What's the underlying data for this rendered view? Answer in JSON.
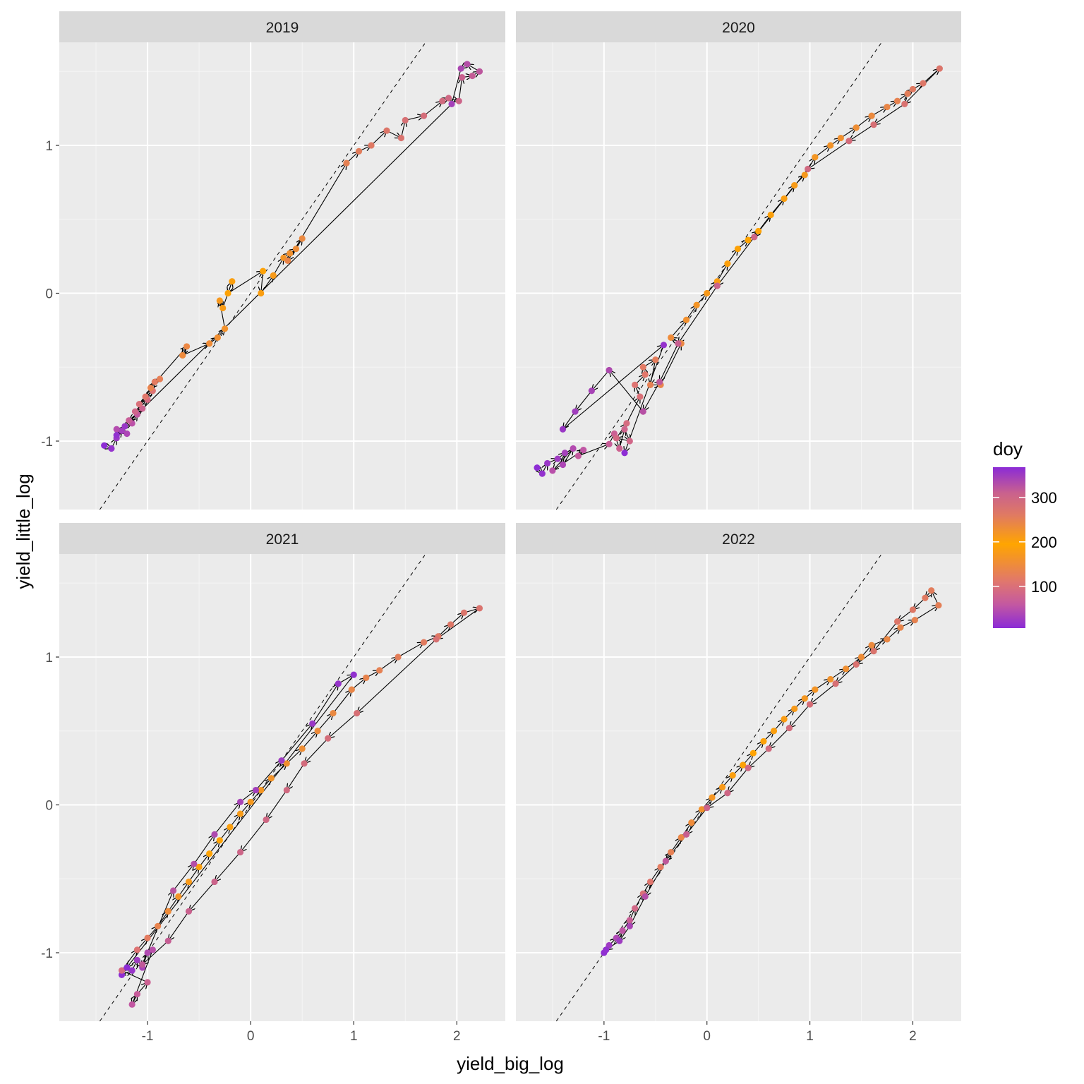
{
  "chart_data": {
    "type": "scatter",
    "xlabel": "yield_big_log",
    "ylabel": "yield_little_log",
    "xlim": [
      -1.856,
      2.47
    ],
    "ylim": [
      -1.463,
      1.697
    ],
    "x_ticks": [
      -1,
      0,
      1,
      2
    ],
    "y_ticks": [
      -1,
      0,
      1
    ],
    "reference_line": {
      "type": "y=x",
      "style": "dashed"
    },
    "legend": {
      "title": "doy",
      "placement": "right",
      "ticks": [
        100,
        200,
        300
      ],
      "range": [
        6,
        368
      ],
      "stops": [
        {
          "v": 6,
          "c": "#8B2BD6"
        },
        {
          "v": 60,
          "c": "#C459A0"
        },
        {
          "v": 110,
          "c": "#E0766E"
        },
        {
          "v": 195,
          "c": "#FFA500"
        },
        {
          "v": 260,
          "c": "#E07A62"
        },
        {
          "v": 310,
          "c": "#C9618E"
        },
        {
          "v": 368,
          "c": "#8B2BD6"
        }
      ]
    },
    "facets": [
      {
        "label": "2019",
        "points": [
          [
            -1.42,
            -1.03,
            8
          ],
          [
            -1.35,
            -1.05,
            15
          ],
          [
            -1.3,
            -0.98,
            22
          ],
          [
            -1.25,
            -0.93,
            30
          ],
          [
            -1.2,
            -0.95,
            38
          ],
          [
            -1.3,
            -0.92,
            45
          ],
          [
            -1.15,
            -0.88,
            52
          ],
          [
            -1.1,
            -0.82,
            60
          ],
          [
            -1.18,
            -0.86,
            68
          ],
          [
            -1.05,
            -0.78,
            75
          ],
          [
            -1.12,
            -0.8,
            82
          ],
          [
            -1.0,
            -0.72,
            90
          ],
          [
            -1.08,
            -0.75,
            98
          ],
          [
            -0.95,
            -0.66,
            105
          ],
          [
            -1.02,
            -0.7,
            112
          ],
          [
            -0.93,
            -0.6,
            120
          ],
          [
            -0.88,
            -0.58,
            128
          ],
          [
            -0.97,
            -0.64,
            135
          ],
          [
            -0.62,
            -0.36,
            142
          ],
          [
            -0.66,
            -0.42,
            148
          ],
          [
            -0.4,
            -0.34,
            152
          ],
          [
            -0.32,
            -0.3,
            156
          ],
          [
            -0.25,
            -0.24,
            160
          ],
          [
            -0.3,
            -0.05,
            172
          ],
          [
            -0.27,
            -0.1,
            178
          ],
          [
            -0.18,
            0.08,
            184
          ],
          [
            -0.22,
            0.0,
            190
          ],
          [
            0.12,
            0.15,
            200
          ],
          [
            0.1,
            0.0,
            206
          ],
          [
            0.22,
            0.12,
            212
          ],
          [
            0.32,
            0.24,
            220
          ],
          [
            0.38,
            0.27,
            226
          ],
          [
            0.44,
            0.3,
            232
          ],
          [
            0.5,
            0.37,
            238
          ],
          [
            0.36,
            0.22,
            244
          ],
          [
            0.93,
            0.88,
            250
          ],
          [
            1.05,
            0.96,
            256
          ],
          [
            1.17,
            1.0,
            262
          ],
          [
            1.32,
            1.1,
            268
          ],
          [
            1.46,
            1.05,
            274
          ],
          [
            1.5,
            1.17,
            280
          ],
          [
            1.68,
            1.2,
            286
          ],
          [
            1.86,
            1.3,
            292
          ],
          [
            1.92,
            1.32,
            298
          ],
          [
            2.02,
            1.3,
            304
          ],
          [
            2.05,
            1.46,
            310
          ],
          [
            2.15,
            1.47,
            316
          ],
          [
            2.22,
            1.5,
            322
          ],
          [
            2.1,
            1.55,
            330
          ],
          [
            2.04,
            1.52,
            338
          ],
          [
            1.95,
            1.28,
            345
          ],
          [
            -1.22,
            -0.9,
            355
          ],
          [
            -1.3,
            -0.96,
            362
          ]
        ]
      },
      {
        "label": "2020",
        "points": [
          [
            -1.65,
            -1.18,
            8
          ],
          [
            -1.6,
            -1.22,
            14
          ],
          [
            -1.55,
            -1.15,
            20
          ],
          [
            -1.45,
            -1.12,
            26
          ],
          [
            -1.38,
            -1.08,
            32
          ],
          [
            -1.4,
            -1.16,
            38
          ],
          [
            -1.3,
            -1.05,
            44
          ],
          [
            -1.5,
            -1.2,
            50
          ],
          [
            -1.2,
            -1.06,
            56
          ],
          [
            -1.25,
            -1.1,
            62
          ],
          [
            -0.95,
            -1.02,
            68
          ],
          [
            -0.9,
            -0.95,
            72
          ],
          [
            -0.85,
            -1.05,
            76
          ],
          [
            -0.8,
            -0.92,
            80
          ],
          [
            -0.75,
            -1.0,
            84
          ],
          [
            -0.88,
            -0.98,
            88
          ],
          [
            -0.78,
            -0.88,
            92
          ],
          [
            -0.65,
            -0.7,
            100
          ],
          [
            -0.7,
            -0.62,
            106
          ],
          [
            -0.6,
            -0.55,
            112
          ],
          [
            -0.62,
            -0.5,
            118
          ],
          [
            -0.5,
            -0.45,
            124
          ],
          [
            -0.55,
            -0.62,
            130
          ],
          [
            -0.45,
            -0.62,
            136
          ],
          [
            -0.25,
            -0.34,
            142
          ],
          [
            -0.35,
            -0.3,
            150
          ],
          [
            -0.2,
            -0.18,
            158
          ],
          [
            -0.1,
            -0.08,
            166
          ],
          [
            0.0,
            0.0,
            174
          ],
          [
            0.1,
            0.08,
            180
          ],
          [
            0.2,
            0.2,
            186
          ],
          [
            0.3,
            0.3,
            190
          ],
          [
            0.4,
            0.36,
            194
          ],
          [
            0.5,
            0.42,
            198
          ],
          [
            0.62,
            0.53,
            202
          ],
          [
            0.75,
            0.64,
            206
          ],
          [
            0.85,
            0.73,
            210
          ],
          [
            0.95,
            0.8,
            214
          ],
          [
            1.05,
            0.92,
            218
          ],
          [
            1.2,
            1.0,
            222
          ],
          [
            1.3,
            1.05,
            226
          ],
          [
            1.45,
            1.12,
            230
          ],
          [
            1.6,
            1.2,
            236
          ],
          [
            1.75,
            1.26,
            242
          ],
          [
            1.85,
            1.3,
            248
          ],
          [
            1.95,
            1.35,
            254
          ],
          [
            2.0,
            1.38,
            260
          ],
          [
            2.1,
            1.42,
            266
          ],
          [
            2.26,
            1.52,
            270
          ],
          [
            1.92,
            1.28,
            276
          ],
          [
            1.62,
            1.14,
            282
          ],
          [
            1.38,
            1.03,
            288
          ],
          [
            0.98,
            0.84,
            294
          ],
          [
            0.46,
            0.38,
            300
          ],
          [
            0.1,
            0.05,
            306
          ],
          [
            -0.28,
            -0.34,
            312
          ],
          [
            -0.46,
            -0.6,
            320
          ],
          [
            -0.62,
            -0.8,
            328
          ],
          [
            -0.95,
            -0.52,
            336
          ],
          [
            -1.12,
            -0.66,
            342
          ],
          [
            -1.28,
            -0.8,
            348
          ],
          [
            -1.4,
            -0.92,
            354
          ],
          [
            -0.42,
            -0.35,
            360
          ],
          [
            -0.8,
            -1.08,
            366
          ]
        ]
      },
      {
        "label": "2021",
        "points": [
          [
            -1.25,
            -1.15,
            10
          ],
          [
            -1.15,
            -1.12,
            18
          ],
          [
            -1.1,
            -1.05,
            26
          ],
          [
            -1.05,
            -1.1,
            34
          ],
          [
            -1.0,
            -1.0,
            42
          ],
          [
            -0.95,
            -0.98,
            50
          ],
          [
            -1.15,
            -1.35,
            58
          ],
          [
            -1.1,
            -1.28,
            66
          ],
          [
            -1.0,
            -1.2,
            74
          ],
          [
            -1.25,
            -1.12,
            90
          ],
          [
            -1.1,
            -0.98,
            105
          ],
          [
            -1.0,
            -0.9,
            120
          ],
          [
            -0.9,
            -0.82,
            135
          ],
          [
            -0.8,
            -0.72,
            150
          ],
          [
            -0.7,
            -0.62,
            165
          ],
          [
            -0.6,
            -0.52,
            175
          ],
          [
            -0.5,
            -0.42,
            185
          ],
          [
            -0.4,
            -0.33,
            192
          ],
          [
            -0.3,
            -0.24,
            198
          ],
          [
            -0.2,
            -0.15,
            204
          ],
          [
            -0.1,
            -0.06,
            210
          ],
          [
            0.0,
            0.02,
            214
          ],
          [
            0.1,
            0.1,
            218
          ],
          [
            0.2,
            0.18,
            222
          ],
          [
            0.35,
            0.28,
            226
          ],
          [
            0.5,
            0.38,
            230
          ],
          [
            0.65,
            0.5,
            234
          ],
          [
            0.8,
            0.62,
            238
          ],
          [
            0.98,
            0.78,
            242
          ],
          [
            1.12,
            0.86,
            246
          ],
          [
            1.25,
            0.91,
            250
          ],
          [
            1.43,
            1.0,
            254
          ],
          [
            1.68,
            1.1,
            258
          ],
          [
            1.82,
            1.14,
            262
          ],
          [
            1.94,
            1.22,
            266
          ],
          [
            2.07,
            1.3,
            270
          ],
          [
            2.22,
            1.33,
            274
          ],
          [
            1.8,
            1.12,
            278
          ],
          [
            1.03,
            0.62,
            282
          ],
          [
            0.75,
            0.45,
            286
          ],
          [
            0.52,
            0.28,
            290
          ],
          [
            0.35,
            0.1,
            294
          ],
          [
            0.15,
            -0.1,
            298
          ],
          [
            -0.1,
            -0.32,
            302
          ],
          [
            -0.35,
            -0.52,
            306
          ],
          [
            -0.6,
            -0.72,
            310
          ],
          [
            -0.8,
            -0.92,
            314
          ],
          [
            -1.05,
            -1.08,
            318
          ],
          [
            -0.75,
            -0.58,
            324
          ],
          [
            -0.55,
            -0.4,
            330
          ],
          [
            -0.35,
            -0.2,
            336
          ],
          [
            -0.1,
            0.02,
            342
          ],
          [
            0.05,
            0.1,
            346
          ],
          [
            0.3,
            0.3,
            350
          ],
          [
            0.6,
            0.55,
            354
          ],
          [
            0.85,
            0.82,
            358
          ],
          [
            1.0,
            0.88,
            362
          ],
          [
            -1.2,
            -1.1,
            366
          ]
        ]
      },
      {
        "label": "2022",
        "points": [
          [
            -1.0,
            -1.0,
            10
          ],
          [
            -0.95,
            -0.95,
            25
          ],
          [
            -0.88,
            -0.9,
            40
          ],
          [
            -0.82,
            -0.85,
            55
          ],
          [
            -0.75,
            -0.78,
            70
          ],
          [
            -0.7,
            -0.7,
            85
          ],
          [
            -0.62,
            -0.6,
            100
          ],
          [
            -0.55,
            -0.52,
            110
          ],
          [
            -0.45,
            -0.42,
            120
          ],
          [
            -0.35,
            -0.32,
            130
          ],
          [
            -0.25,
            -0.22,
            140
          ],
          [
            -0.15,
            -0.12,
            150
          ],
          [
            -0.05,
            -0.03,
            160
          ],
          [
            0.05,
            0.05,
            168
          ],
          [
            0.15,
            0.12,
            176
          ],
          [
            0.25,
            0.2,
            184
          ],
          [
            0.35,
            0.27,
            190
          ],
          [
            0.45,
            0.35,
            196
          ],
          [
            0.55,
            0.43,
            200
          ],
          [
            0.65,
            0.5,
            204
          ],
          [
            0.75,
            0.58,
            208
          ],
          [
            0.85,
            0.65,
            212
          ],
          [
            0.95,
            0.72,
            216
          ],
          [
            1.05,
            0.78,
            220
          ],
          [
            1.2,
            0.85,
            224
          ],
          [
            1.35,
            0.92,
            228
          ],
          [
            1.5,
            1.0,
            232
          ],
          [
            1.6,
            1.08,
            236
          ],
          [
            1.75,
            1.12,
            240
          ],
          [
            1.88,
            1.2,
            244
          ],
          [
            2.02,
            1.25,
            248
          ],
          [
            2.25,
            1.35,
            252
          ],
          [
            2.18,
            1.45,
            256
          ],
          [
            2.12,
            1.4,
            260
          ],
          [
            2.0,
            1.32,
            264
          ],
          [
            1.85,
            1.24,
            268
          ],
          [
            1.62,
            1.04,
            272
          ],
          [
            1.45,
            0.95,
            276
          ],
          [
            1.25,
            0.82,
            280
          ],
          [
            1.0,
            0.68,
            284
          ],
          [
            0.8,
            0.52,
            288
          ],
          [
            0.6,
            0.38,
            292
          ],
          [
            0.4,
            0.25,
            296
          ],
          [
            0.2,
            0.08,
            300
          ],
          [
            0.0,
            -0.02,
            306
          ],
          [
            -0.2,
            -0.2,
            312
          ],
          [
            -0.4,
            -0.38,
            320
          ],
          [
            -0.6,
            -0.62,
            330
          ],
          [
            -0.75,
            -0.82,
            340
          ],
          [
            -0.85,
            -0.92,
            350
          ],
          [
            -0.98,
            -0.98,
            362
          ]
        ]
      }
    ]
  }
}
